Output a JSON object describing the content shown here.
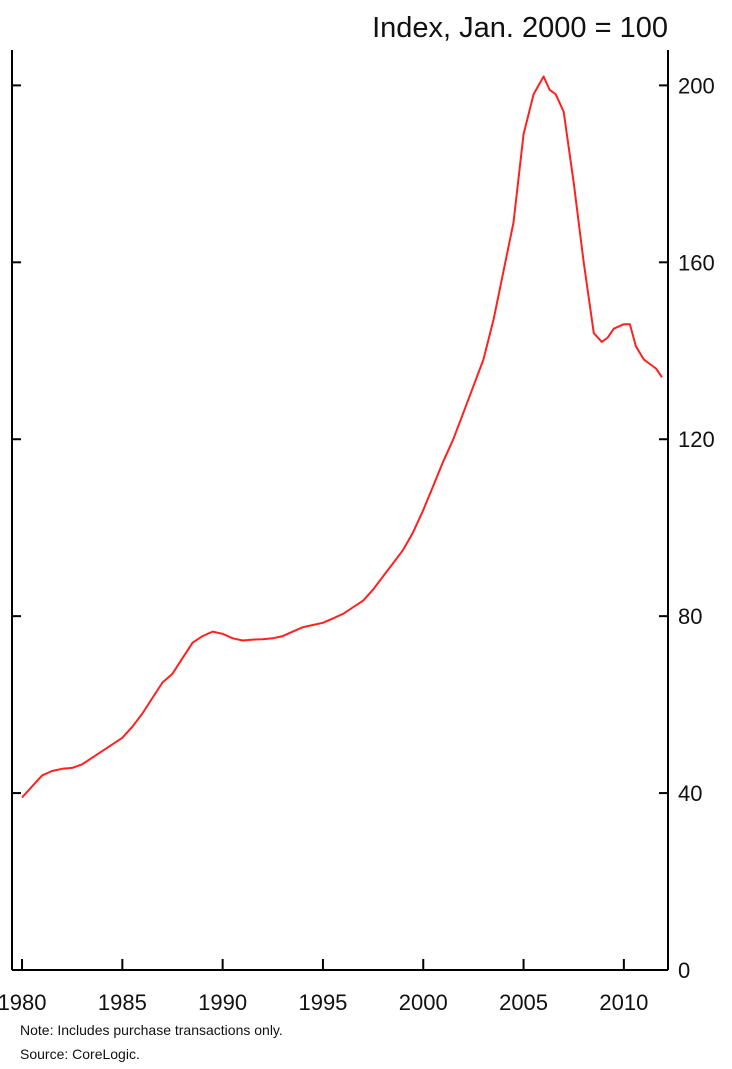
{
  "chart_data": {
    "type": "line",
    "y_unit_label": "Index, Jan. 2000 = 100",
    "xlim": [
      1979.5,
      2012.2
    ],
    "ylim": [
      0,
      208
    ],
    "x_ticks": [
      1980,
      1985,
      1990,
      1995,
      2000,
      2005,
      2010
    ],
    "y_ticks": [
      0,
      40,
      80,
      120,
      160,
      200
    ],
    "y_axis_side": "right",
    "grid": false,
    "line_color": "#ff2020",
    "series": [
      {
        "x": [
          1980.0,
          1980.5,
          1981.0,
          1981.5,
          1982.0,
          1982.5,
          1983.0,
          1983.5,
          1984.0,
          1984.5,
          1985.0,
          1985.5,
          1986.0,
          1986.5,
          1987.0,
          1987.5,
          1988.0,
          1988.5,
          1989.0,
          1989.5,
          1990.0,
          1990.5,
          1991.0,
          1991.5,
          1992.0,
          1992.5,
          1993.0,
          1993.5,
          1994.0,
          1994.5,
          1995.0,
          1995.5,
          1996.0,
          1996.5,
          1997.0,
          1997.5,
          1998.0,
          1998.5,
          1999.0,
          1999.5,
          2000.0,
          2000.5,
          2001.0,
          2001.5,
          2002.0,
          2002.5,
          2003.0,
          2003.5,
          2004.0,
          2004.5,
          2005.0,
          2005.5,
          2006.0,
          2006.3,
          2006.6,
          2007.0,
          2007.5,
          2008.0,
          2008.5,
          2008.9,
          2009.2,
          2009.5,
          2010.0,
          2010.3,
          2010.6,
          2011.0,
          2011.3,
          2011.6,
          2011.9
        ],
        "y": [
          39,
          41.5,
          44,
          45,
          45.5,
          45.7,
          46.5,
          48,
          49.5,
          51,
          52.5,
          55,
          58,
          61.5,
          65,
          67,
          70.5,
          74,
          75.5,
          76.5,
          76,
          75,
          74.5,
          74.7,
          74.8,
          75,
          75.5,
          76.5,
          77.5,
          78,
          78.5,
          79.5,
          80.5,
          82,
          83.5,
          86,
          89,
          92,
          95,
          99,
          104,
          109.5,
          115,
          120,
          126,
          132,
          138,
          147,
          158,
          169,
          189,
          198,
          202,
          199,
          198,
          194,
          178,
          160,
          144,
          142,
          143,
          145,
          146,
          146,
          141,
          138,
          137,
          136,
          134
        ]
      }
    ]
  },
  "notes": {
    "note": "Note: Includes purchase transactions only.",
    "source": "Source: CoreLogic."
  }
}
